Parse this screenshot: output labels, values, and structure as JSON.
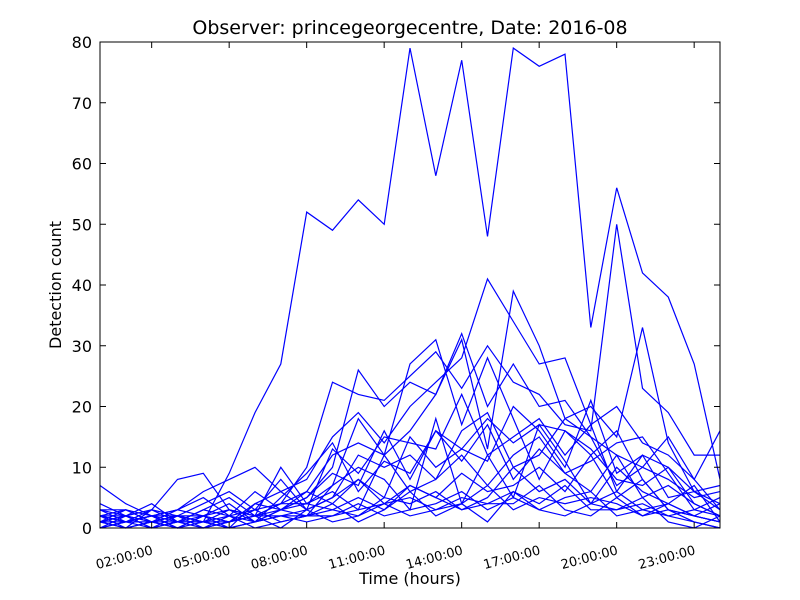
{
  "chart_data": {
    "type": "line",
    "title": "Observer: princegeorgecentre, Date: 2016-08",
    "xlabel": "Time (hours)",
    "ylabel": "Detection count",
    "x": [
      "00:00:00",
      "01:00:00",
      "02:00:00",
      "03:00:00",
      "04:00:00",
      "05:00:00",
      "06:00:00",
      "07:00:00",
      "08:00:00",
      "09:00:00",
      "10:00:00",
      "11:00:00",
      "12:00:00",
      "13:00:00",
      "14:00:00",
      "15:00:00",
      "16:00:00",
      "17:00:00",
      "18:00:00",
      "19:00:00",
      "20:00:00",
      "21:00:00",
      "22:00:00",
      "23:00:00",
      "24:00:00"
    ],
    "x_ticks": [
      "02:00:00",
      "05:00:00",
      "08:00:00",
      "11:00:00",
      "14:00:00",
      "17:00:00",
      "20:00:00",
      "23:00:00"
    ],
    "xlim": [
      "00:00:00",
      "24:00:00"
    ],
    "ylim": [
      0,
      80
    ],
    "y_ticks": [
      0,
      10,
      20,
      30,
      40,
      50,
      60,
      70,
      80
    ],
    "line_color": "#0000ff",
    "grid": false,
    "series": [
      {
        "values": [
          2,
          1,
          3,
          1,
          1,
          9,
          19,
          27,
          52,
          49,
          54,
          50,
          79,
          58,
          77,
          48,
          79,
          76,
          78,
          33,
          56,
          42,
          38,
          27,
          8
        ]
      },
      {
        "values": [
          1,
          2,
          1,
          2,
          0,
          1,
          3,
          4,
          10,
          24,
          22,
          21,
          25,
          29,
          23,
          30,
          24,
          22,
          17,
          16,
          50,
          23,
          19,
          12,
          12
        ]
      },
      {
        "values": [
          3,
          2,
          1,
          3,
          2,
          1,
          4,
          6,
          8,
          15,
          19,
          14,
          20,
          24,
          28,
          41,
          34,
          27,
          28,
          17,
          20,
          14,
          12,
          8,
          16
        ]
      },
      {
        "values": [
          0,
          1,
          2,
          1,
          3,
          2,
          1,
          3,
          5,
          10,
          26,
          20,
          24,
          22,
          31,
          13,
          39,
          30,
          18,
          20,
          15,
          33,
          14,
          6,
          7
        ]
      },
      {
        "values": [
          2,
          1,
          0,
          1,
          2,
          3,
          2,
          4,
          6,
          12,
          14,
          12,
          16,
          22,
          32,
          20,
          27,
          20,
          21,
          15,
          12,
          10,
          15,
          8,
          3
        ]
      },
      {
        "values": [
          1,
          0,
          3,
          8,
          9,
          3,
          2,
          10,
          4,
          7,
          18,
          12,
          27,
          31,
          17,
          28,
          18,
          8,
          16,
          12,
          16,
          8,
          3,
          2,
          1
        ]
      },
      {
        "values": [
          7,
          4,
          2,
          3,
          6,
          8,
          10,
          6,
          3,
          13,
          9,
          15,
          14,
          13,
          22,
          12,
          15,
          18,
          12,
          17,
          6,
          12,
          10,
          4,
          2
        ]
      },
      {
        "values": [
          2,
          3,
          1,
          0,
          2,
          4,
          1,
          5,
          9,
          14,
          6,
          11,
          9,
          16,
          11,
          17,
          8,
          13,
          9,
          11,
          14,
          15,
          9,
          3,
          5
        ]
      },
      {
        "values": [
          1,
          2,
          3,
          2,
          4,
          6,
          3,
          8,
          3,
          5,
          12,
          10,
          12,
          8,
          16,
          19,
          10,
          12,
          18,
          15,
          7,
          10,
          8,
          5,
          6
        ]
      },
      {
        "values": [
          3,
          1,
          2,
          2,
          1,
          0,
          4,
          3,
          5,
          9,
          7,
          16,
          8,
          16,
          13,
          18,
          14,
          17,
          16,
          13,
          8,
          7,
          10,
          6,
          4
        ]
      },
      {
        "values": [
          0,
          1,
          1,
          0,
          2,
          1,
          2,
          3,
          6,
          4,
          8,
          5,
          15,
          10,
          13,
          11,
          20,
          16,
          10,
          21,
          9,
          12,
          5,
          6,
          3
        ]
      },
      {
        "values": [
          2,
          2,
          4,
          1,
          3,
          5,
          2,
          4,
          4,
          6,
          3,
          12,
          6,
          8,
          12,
          7,
          12,
          15,
          9,
          6,
          12,
          5,
          7,
          4,
          2
        ]
      },
      {
        "values": [
          1,
          3,
          2,
          3,
          5,
          2,
          6,
          3,
          2,
          7,
          10,
          8,
          3,
          18,
          4,
          12,
          5,
          17,
          11,
          4,
          10,
          6,
          4,
          7,
          1
        ]
      },
      {
        "values": [
          4,
          2,
          0,
          2,
          1,
          3,
          1,
          2,
          3,
          5,
          8,
          4,
          7,
          5,
          9,
          6,
          7,
          10,
          6,
          12,
          5,
          8,
          3,
          2,
          4
        ]
      },
      {
        "values": [
          1,
          0,
          1,
          1,
          0,
          2,
          3,
          1,
          2,
          3,
          2,
          5,
          4,
          6,
          3,
          5,
          10,
          6,
          8,
          4,
          6,
          3,
          4,
          2,
          1
        ]
      },
      {
        "values": [
          2,
          1,
          2,
          0,
          1,
          1,
          2,
          2,
          1,
          2,
          3,
          4,
          5,
          3,
          4,
          7,
          3,
          5,
          4,
          5,
          4,
          2,
          3,
          1,
          0
        ]
      },
      {
        "values": [
          3,
          3,
          1,
          2,
          2,
          0,
          1,
          3,
          4,
          3,
          5,
          3,
          7,
          5,
          3,
          4,
          6,
          4,
          7,
          3,
          3,
          4,
          2,
          3,
          2
        ]
      },
      {
        "values": [
          0,
          2,
          0,
          1,
          1,
          2,
          0,
          1,
          2,
          2,
          4,
          2,
          3,
          4,
          6,
          3,
          5,
          3,
          5,
          6,
          2,
          3,
          2,
          1,
          0
        ]
      },
      {
        "values": [
          1,
          1,
          2,
          0,
          0,
          1,
          2,
          0,
          3,
          1,
          2,
          4,
          2,
          3,
          5,
          4,
          4,
          7,
          3,
          2,
          5,
          2,
          4,
          2,
          1
        ]
      },
      {
        "values": [
          2,
          0,
          1,
          2,
          1,
          0,
          1,
          2,
          2,
          4,
          1,
          3,
          6,
          2,
          4,
          1,
          6,
          3,
          2,
          4,
          3,
          5,
          1,
          0,
          2
        ]
      }
    ]
  }
}
